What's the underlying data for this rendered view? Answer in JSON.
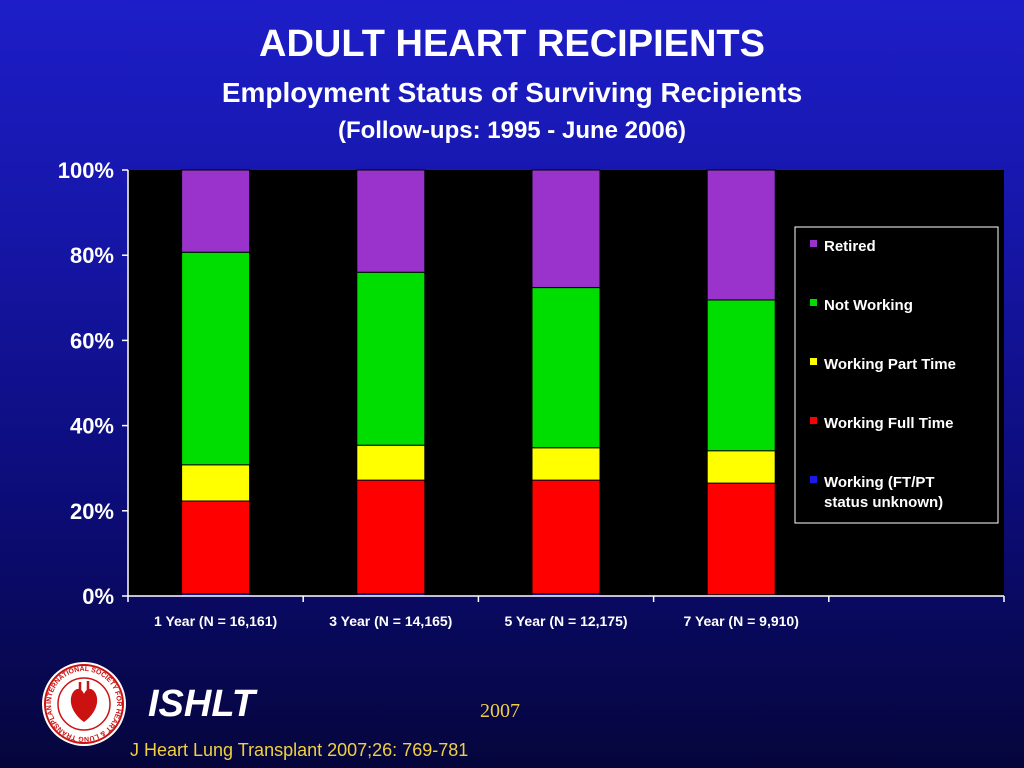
{
  "header": {
    "title": "ADULT HEART RECIPIENTS",
    "subtitle": "Employment Status of Surviving Recipients",
    "followups": "(Follow-ups: 1995 - June 2006)"
  },
  "footer": {
    "brand": "ISHLT",
    "year": "2007",
    "citation": "J Heart Lung Transplant 2007;26: 769-781",
    "logo_text": "INTERNATIONAL SOCIETY FOR HEART & LUNG TRANSPLANTATION"
  },
  "colors": {
    "plot_bg": "#000000",
    "Working (FT/PT status unknown)": "#1a1ae0",
    "Working Full Time": "#ff0000",
    "Working Part Time": "#ffff00",
    "Not Working": "#00dd00",
    "Retired": "#9933cc"
  },
  "chart_data": {
    "type": "bar",
    "stacked": true,
    "percent_stacked": true,
    "categories": [
      "1 Year  (N = 16,161)",
      "3 Year  (N = 14,165)",
      "5 Year  (N = 12,175)",
      "7 Year  (N = 9,910)"
    ],
    "series": [
      {
        "name": "Working (FT/PT status unknown)",
        "values": [
          0.5,
          0.5,
          0.5,
          0.3
        ]
      },
      {
        "name": "Working Full Time",
        "values": [
          21.8,
          26.7,
          26.7,
          26.2
        ]
      },
      {
        "name": "Working Part Time",
        "values": [
          8.5,
          8.2,
          7.6,
          7.6
        ]
      },
      {
        "name": "Not Working",
        "values": [
          49.9,
          40.6,
          37.6,
          35.4
        ]
      },
      {
        "name": "Retired",
        "values": [
          19.3,
          24.0,
          27.6,
          30.5
        ]
      }
    ],
    "yticks": [
      "0%",
      "20%",
      "40%",
      "60%",
      "80%",
      "100%"
    ],
    "ylim": [
      0,
      100
    ],
    "legend": [
      "Retired",
      "Not Working",
      "Working Part Time",
      "Working Full Time",
      "Working (FT/PT status unknown)"
    ],
    "legend_position": "right",
    "grid": false
  }
}
